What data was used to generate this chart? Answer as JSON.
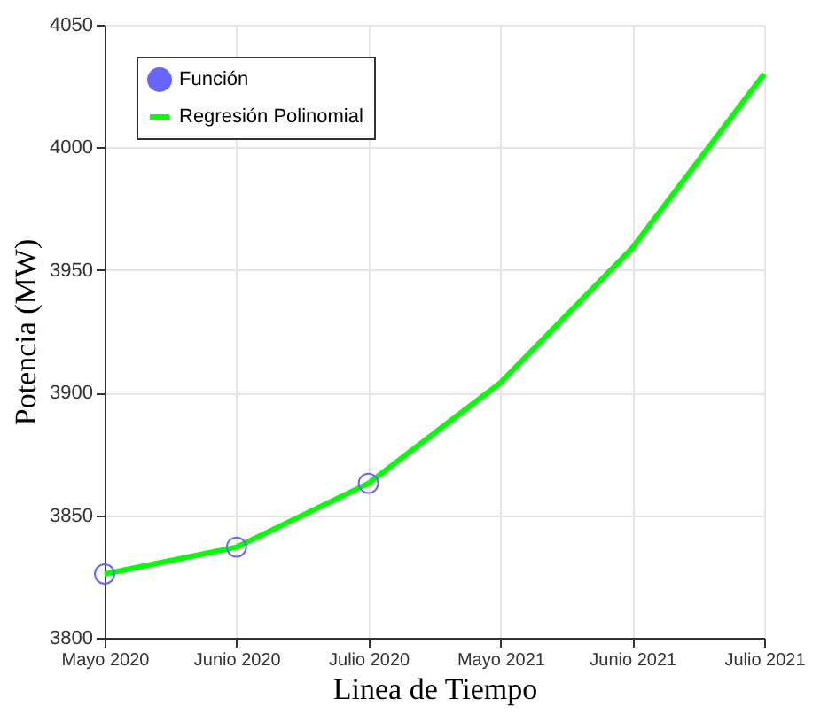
{
  "chart_data": {
    "type": "line",
    "xlabel": "Linea de Tiempo",
    "ylabel": "Potencia (MW)",
    "categories": [
      "Mayo 2020",
      "Junio 2020",
      "Julio 2020",
      "Mayo 2021",
      "Junio 2021",
      "Julio 2021"
    ],
    "series": [
      {
        "name": "Función",
        "type": "scatter",
        "color": "#6666ff",
        "marker": "circle",
        "values": [
          3826,
          3837,
          3863,
          null,
          null,
          null
        ]
      },
      {
        "name": "Regresión Polinomial",
        "type": "line",
        "color": "#00ff00",
        "values": [
          3826,
          3837,
          3863,
          3904,
          3959,
          4030
        ]
      }
    ],
    "ylim": [
      3800,
      4050
    ],
    "yticks": [
      3800,
      3850,
      3900,
      3950,
      4000,
      4050
    ],
    "grid": true,
    "legend": "top left"
  }
}
